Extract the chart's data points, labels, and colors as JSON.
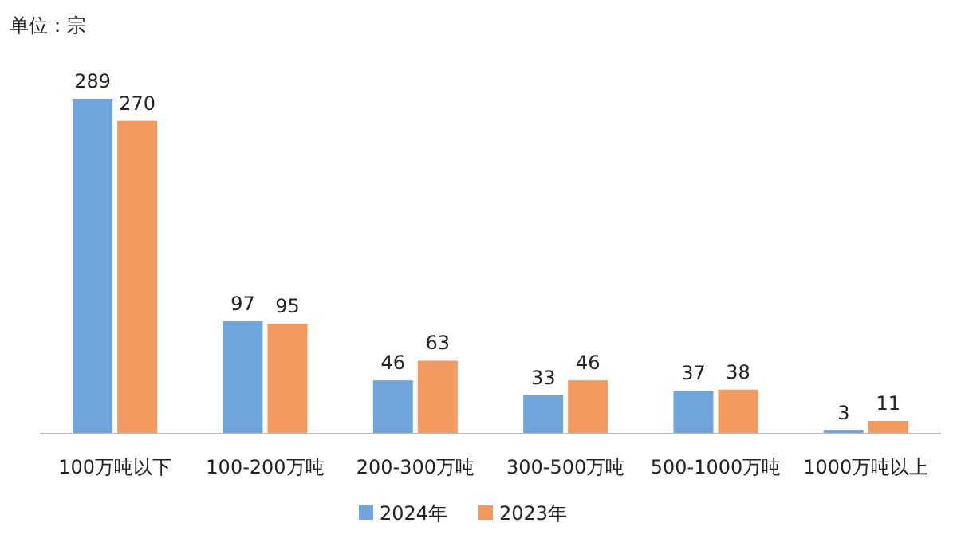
{
  "chart_data": {
    "type": "bar",
    "annotations": [
      "单位：宗"
    ],
    "categories": [
      "100万吨以下",
      "100-200万吨",
      "200-300万吨",
      "300-500万吨",
      "500-1000万吨",
      "1000万吨以上"
    ],
    "series": [
      {
        "name": "2024年",
        "color": "#6fa5db",
        "values": [
          289,
          97,
          46,
          33,
          37,
          3
        ]
      },
      {
        "name": "2023年",
        "color": "#f29a5f",
        "values": [
          270,
          95,
          63,
          46,
          38,
          11
        ]
      }
    ],
    "data_labels": true,
    "legend": "bottom",
    "grid": false
  }
}
